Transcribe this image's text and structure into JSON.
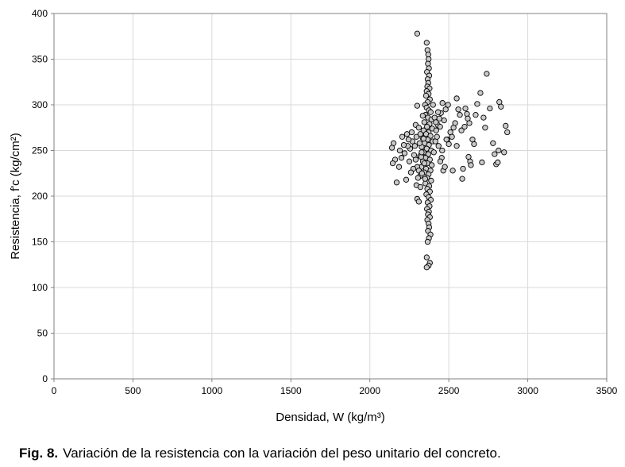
{
  "caption": {
    "label": "Fig. 8.",
    "text": "Variación de la resistencia con la variación del peso unitario del concreto."
  },
  "colors": {
    "marker_fill": "#c9c9c9",
    "marker_stroke": "#000000",
    "grid": "#d9d9d9",
    "axis": "#808080"
  },
  "chart_data": {
    "type": "scatter",
    "xlabel": "Densidad, W (kg/m³)",
    "ylabel": "Resistencia, f'c (kg/cm²)",
    "xlim": [
      0,
      3500
    ],
    "ylim": [
      0,
      400
    ],
    "xticks": [
      0,
      500,
      1000,
      1500,
      2000,
      2500,
      3000,
      3500
    ],
    "yticks": [
      0,
      50,
      100,
      150,
      200,
      250,
      300,
      350,
      400
    ],
    "grid": true,
    "legend": "none",
    "series": [
      {
        "points": [
          [
            2300,
            378
          ],
          [
            2360,
            368
          ],
          [
            2365,
            360
          ],
          [
            2370,
            355
          ],
          [
            2372,
            350
          ],
          [
            2368,
            345
          ],
          [
            2374,
            340
          ],
          [
            2362,
            336
          ],
          [
            2376,
            332
          ],
          [
            2366,
            328
          ],
          [
            2370,
            324
          ],
          [
            2364,
            320
          ],
          [
            2378,
            318
          ],
          [
            2360,
            315
          ],
          [
            2372,
            312
          ],
          [
            2356,
            310
          ],
          [
            2380,
            306
          ],
          [
            2366,
            303
          ],
          [
            2350,
            300
          ],
          [
            2360,
            297
          ],
          [
            2374,
            294
          ],
          [
            2385,
            292
          ],
          [
            2352,
            289
          ],
          [
            2368,
            286
          ],
          [
            2390,
            284
          ],
          [
            2345,
            281
          ],
          [
            2378,
            279
          ],
          [
            2362,
            276
          ],
          [
            2395,
            274
          ],
          [
            2340,
            272
          ],
          [
            2372,
            270
          ],
          [
            2356,
            268
          ],
          [
            2384,
            266
          ],
          [
            2334,
            264
          ],
          [
            2366,
            262
          ],
          [
            2398,
            260
          ],
          [
            2346,
            258
          ],
          [
            2374,
            256
          ],
          [
            2328,
            254
          ],
          [
            2360,
            252
          ],
          [
            2388,
            250
          ],
          [
            2340,
            248
          ],
          [
            2370,
            246
          ],
          [
            2318,
            244
          ],
          [
            2352,
            242
          ],
          [
            2380,
            240
          ],
          [
            2336,
            238
          ],
          [
            2364,
            236
          ],
          [
            2392,
            234
          ],
          [
            2326,
            232
          ],
          [
            2356,
            230
          ],
          [
            2384,
            228
          ],
          [
            2344,
            226
          ],
          [
            2372,
            224
          ],
          [
            2318,
            222
          ],
          [
            2362,
            220
          ],
          [
            2388,
            217
          ],
          [
            2352,
            214
          ],
          [
            2376,
            211
          ],
          [
            2364,
            208
          ],
          [
            2380,
            205
          ],
          [
            2358,
            202
          ],
          [
            2372,
            199
          ],
          [
            2386,
            196
          ],
          [
            2366,
            193
          ],
          [
            2378,
            189
          ],
          [
            2362,
            186
          ],
          [
            2374,
            183
          ],
          [
            2368,
            180
          ],
          [
            2380,
            177
          ],
          [
            2364,
            174
          ],
          [
            2372,
            170
          ],
          [
            2376,
            166
          ],
          [
            2368,
            162
          ],
          [
            2384,
            158
          ],
          [
            2374,
            154
          ],
          [
            2366,
            150
          ],
          [
            2360,
            133
          ],
          [
            2380,
            127
          ],
          [
            2372,
            124
          ],
          [
            2360,
            122
          ],
          [
            2300,
            299
          ],
          [
            2290,
            278
          ],
          [
            2295,
            265
          ],
          [
            2285,
            255
          ],
          [
            2290,
            240
          ],
          [
            2300,
            232
          ],
          [
            2310,
            228
          ],
          [
            2305,
            220
          ],
          [
            2295,
            212
          ],
          [
            2300,
            197
          ],
          [
            2310,
            194
          ],
          [
            2320,
            268
          ],
          [
            2325,
            243
          ],
          [
            2315,
            258
          ],
          [
            2330,
            225
          ],
          [
            2320,
            210
          ],
          [
            2335,
            288
          ],
          [
            2340,
            263
          ],
          [
            2328,
            248
          ],
          [
            2345,
            236
          ],
          [
            2350,
            219
          ],
          [
            2310,
            275
          ],
          [
            2280,
            245
          ],
          [
            2270,
            260
          ],
          [
            2275,
            230
          ],
          [
            2265,
            270
          ],
          [
            2255,
            252
          ],
          [
            2250,
            238
          ],
          [
            2245,
            262
          ],
          [
            2260,
            226
          ],
          [
            2240,
            255
          ],
          [
            2235,
            268
          ],
          [
            2230,
            218
          ],
          [
            2220,
            247
          ],
          [
            2215,
            256
          ],
          [
            2205,
            265
          ],
          [
            2200,
            242
          ],
          [
            2190,
            250
          ],
          [
            2185,
            232
          ],
          [
            2170,
            215
          ],
          [
            2160,
            240
          ],
          [
            2150,
            258
          ],
          [
            2140,
            253
          ],
          [
            2145,
            236
          ],
          [
            2400,
            300
          ],
          [
            2410,
            286
          ],
          [
            2420,
            272
          ],
          [
            2415,
            260
          ],
          [
            2405,
            248
          ],
          [
            2425,
            265
          ],
          [
            2430,
            278
          ],
          [
            2440,
            285
          ],
          [
            2450,
            291
          ],
          [
            2460,
            302
          ],
          [
            2470,
            283
          ],
          [
            2480,
            295
          ],
          [
            2445,
            276
          ],
          [
            2435,
            255
          ],
          [
            2455,
            242
          ],
          [
            2465,
            228
          ],
          [
            2475,
            232
          ],
          [
            2490,
            262
          ],
          [
            2500,
            257
          ],
          [
            2510,
            270
          ],
          [
            2520,
            265
          ],
          [
            2530,
            275
          ],
          [
            2540,
            280
          ],
          [
            2550,
            307
          ],
          [
            2560,
            295
          ],
          [
            2570,
            289
          ],
          [
            2580,
            272
          ],
          [
            2585,
            219
          ],
          [
            2600,
            276
          ],
          [
            2605,
            296
          ],
          [
            2615,
            290
          ],
          [
            2620,
            285
          ],
          [
            2630,
            280
          ],
          [
            2625,
            243
          ],
          [
            2635,
            238
          ],
          [
            2640,
            234
          ],
          [
            2650,
            262
          ],
          [
            2660,
            257
          ],
          [
            2670,
            289
          ],
          [
            2680,
            301
          ],
          [
            2700,
            313
          ],
          [
            2710,
            237
          ],
          [
            2720,
            286
          ],
          [
            2730,
            275
          ],
          [
            2740,
            334
          ],
          [
            2760,
            296
          ],
          [
            2780,
            258
          ],
          [
            2790,
            246
          ],
          [
            2800,
            235
          ],
          [
            2810,
            237
          ],
          [
            2815,
            250
          ],
          [
            2820,
            303
          ],
          [
            2830,
            298
          ],
          [
            2850,
            248
          ],
          [
            2860,
            277
          ],
          [
            2870,
            270
          ],
          [
            2590,
            230
          ],
          [
            2550,
            255
          ],
          [
            2525,
            228
          ],
          [
            2495,
            300
          ],
          [
            2485,
            262
          ],
          [
            2458,
            250
          ],
          [
            2446,
            238
          ],
          [
            2432,
            292
          ],
          [
            2418,
            281
          ]
        ]
      }
    ]
  }
}
